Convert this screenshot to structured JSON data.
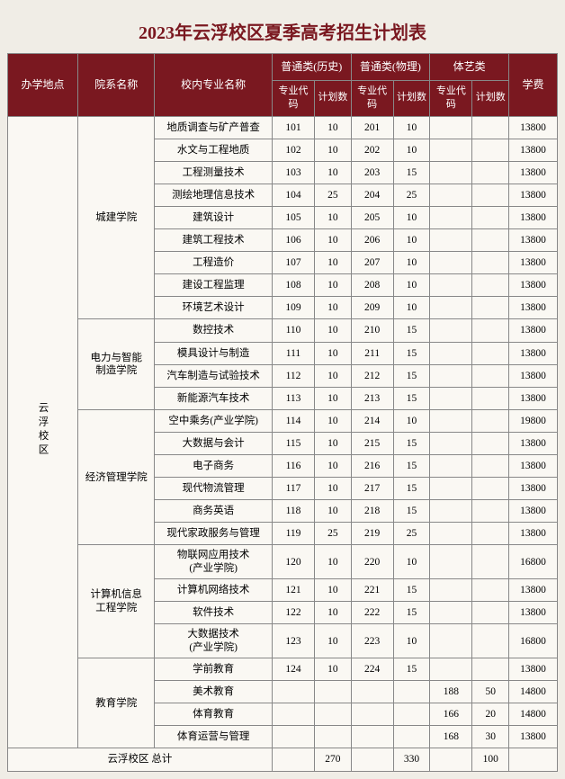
{
  "title": "2023年云浮校区夏季高考招生计划表",
  "headers": {
    "location": "办学地点",
    "dept": "院系名称",
    "major": "校内专业名称",
    "cat_history": "普通类(历史)",
    "cat_physics": "普通类(物理)",
    "cat_arts": "体艺类",
    "code": "专业代码",
    "count": "计划数",
    "fee": "学费"
  },
  "location_label": "云浮校区",
  "depts": [
    {
      "name": "城建学院",
      "rows": [
        {
          "major": "地质调查与矿产普查",
          "hc": "101",
          "hn": "10",
          "pc": "201",
          "pn": "10",
          "ac": "",
          "an": "",
          "fee": "13800"
        },
        {
          "major": "水文与工程地质",
          "hc": "102",
          "hn": "10",
          "pc": "202",
          "pn": "10",
          "ac": "",
          "an": "",
          "fee": "13800"
        },
        {
          "major": "工程测量技术",
          "hc": "103",
          "hn": "10",
          "pc": "203",
          "pn": "15",
          "ac": "",
          "an": "",
          "fee": "13800"
        },
        {
          "major": "测绘地理信息技术",
          "hc": "104",
          "hn": "25",
          "pc": "204",
          "pn": "25",
          "ac": "",
          "an": "",
          "fee": "13800"
        },
        {
          "major": "建筑设计",
          "hc": "105",
          "hn": "10",
          "pc": "205",
          "pn": "10",
          "ac": "",
          "an": "",
          "fee": "13800"
        },
        {
          "major": "建筑工程技术",
          "hc": "106",
          "hn": "10",
          "pc": "206",
          "pn": "10",
          "ac": "",
          "an": "",
          "fee": "13800"
        },
        {
          "major": "工程造价",
          "hc": "107",
          "hn": "10",
          "pc": "207",
          "pn": "10",
          "ac": "",
          "an": "",
          "fee": "13800"
        },
        {
          "major": "建设工程监理",
          "hc": "108",
          "hn": "10",
          "pc": "208",
          "pn": "10",
          "ac": "",
          "an": "",
          "fee": "13800"
        },
        {
          "major": "环境艺术设计",
          "hc": "109",
          "hn": "10",
          "pc": "209",
          "pn": "10",
          "ac": "",
          "an": "",
          "fee": "13800"
        }
      ]
    },
    {
      "name": "电力与智能制造学院",
      "name_lines": [
        "电力与智能",
        "制造学院"
      ],
      "rows": [
        {
          "major": "数控技术",
          "hc": "110",
          "hn": "10",
          "pc": "210",
          "pn": "15",
          "ac": "",
          "an": "",
          "fee": "13800"
        },
        {
          "major": "模具设计与制造",
          "hc": "111",
          "hn": "10",
          "pc": "211",
          "pn": "15",
          "ac": "",
          "an": "",
          "fee": "13800"
        },
        {
          "major": "汽车制造与试验技术",
          "hc": "112",
          "hn": "10",
          "pc": "212",
          "pn": "15",
          "ac": "",
          "an": "",
          "fee": "13800"
        },
        {
          "major": "新能源汽车技术",
          "hc": "113",
          "hn": "10",
          "pc": "213",
          "pn": "15",
          "ac": "",
          "an": "",
          "fee": "13800"
        }
      ]
    },
    {
      "name": "经济管理学院",
      "rows": [
        {
          "major": "空中乘务(产业学院)",
          "hc": "114",
          "hn": "10",
          "pc": "214",
          "pn": "10",
          "ac": "",
          "an": "",
          "fee": "19800"
        },
        {
          "major": "大数据与会计",
          "hc": "115",
          "hn": "10",
          "pc": "215",
          "pn": "15",
          "ac": "",
          "an": "",
          "fee": "13800"
        },
        {
          "major": "电子商务",
          "hc": "116",
          "hn": "10",
          "pc": "216",
          "pn": "15",
          "ac": "",
          "an": "",
          "fee": "13800"
        },
        {
          "major": "现代物流管理",
          "hc": "117",
          "hn": "10",
          "pc": "217",
          "pn": "15",
          "ac": "",
          "an": "",
          "fee": "13800"
        },
        {
          "major": "商务英语",
          "hc": "118",
          "hn": "10",
          "pc": "218",
          "pn": "15",
          "ac": "",
          "an": "",
          "fee": "13800"
        },
        {
          "major": "现代家政服务与管理",
          "hc": "119",
          "hn": "25",
          "pc": "219",
          "pn": "25",
          "ac": "",
          "an": "",
          "fee": "13800"
        }
      ]
    },
    {
      "name": "计算机信息工程学院",
      "name_lines": [
        "计算机信息",
        "工程学院"
      ],
      "rows": [
        {
          "major_lines": [
            "物联网应用技术",
            "(产业学院)"
          ],
          "hc": "120",
          "hn": "10",
          "pc": "220",
          "pn": "10",
          "ac": "",
          "an": "",
          "fee": "16800"
        },
        {
          "major": "计算机网络技术",
          "hc": "121",
          "hn": "10",
          "pc": "221",
          "pn": "15",
          "ac": "",
          "an": "",
          "fee": "13800"
        },
        {
          "major": "软件技术",
          "hc": "122",
          "hn": "10",
          "pc": "222",
          "pn": "15",
          "ac": "",
          "an": "",
          "fee": "13800"
        },
        {
          "major_lines": [
            "大数据技术",
            "(产业学院)"
          ],
          "hc": "123",
          "hn": "10",
          "pc": "223",
          "pn": "10",
          "ac": "",
          "an": "",
          "fee": "16800"
        }
      ]
    },
    {
      "name": "教育学院",
      "rows": [
        {
          "major": "学前教育",
          "hc": "124",
          "hn": "10",
          "pc": "224",
          "pn": "15",
          "ac": "",
          "an": "",
          "fee": "13800"
        },
        {
          "major": "美术教育",
          "hc": "",
          "hn": "",
          "pc": "",
          "pn": "",
          "ac": "188",
          "an": "50",
          "fee": "14800"
        },
        {
          "major": "体育教育",
          "hc": "",
          "hn": "",
          "pc": "",
          "pn": "",
          "ac": "166",
          "an": "20",
          "fee": "14800"
        },
        {
          "major": "体育运营与管理",
          "hc": "",
          "hn": "",
          "pc": "",
          "pn": "",
          "ac": "168",
          "an": "30",
          "fee": "13800"
        }
      ]
    }
  ],
  "total": {
    "label": "云浮校区 总计",
    "hn": "270",
    "pn": "330",
    "an": "100"
  },
  "colors": {
    "header_bg": "#7a1820",
    "header_fg": "#ffffff",
    "page_bg": "#f0ede6",
    "cell_bg": "#faf8f3",
    "border": "#888888"
  }
}
